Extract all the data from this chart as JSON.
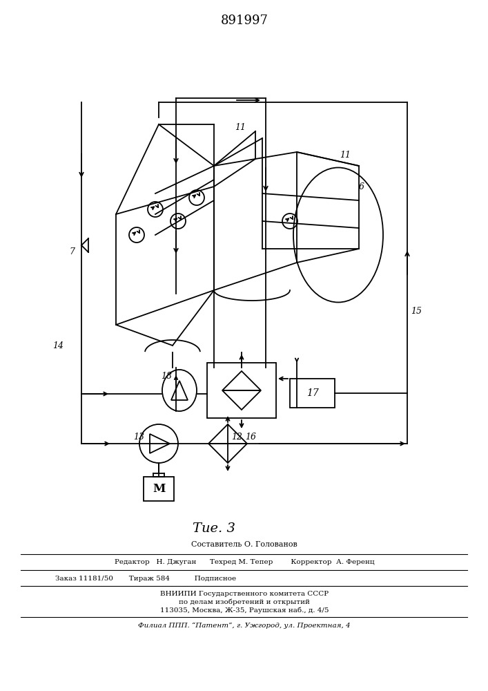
{
  "title": "891997",
  "fig_label": "Τие. 3",
  "background_color": "#ffffff",
  "line_color": "#000000",
  "sestavitel": "Составитель О. Голованов",
  "row1": "Редактор   Н. Джуган      Техред М. Тепер        Корректор  А. Ференц",
  "row2": "Заказ 11181/50       Тираж 584           Подписное",
  "row3": "ВНИИПИ Государственного комитета СССР",
  "row4": "по делам изобретений и открытий",
  "row5": "113035, Москва, Ж-35, Раушская наб., д. 4/5",
  "row6": "Филиал ППП. “Патент”, г. Ужгород, ул. Проектная, 4"
}
